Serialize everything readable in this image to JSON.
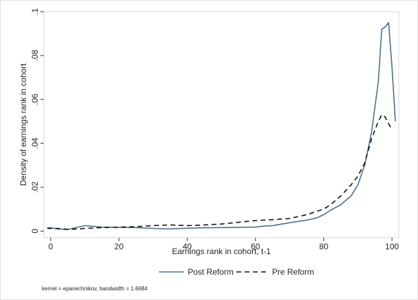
{
  "chart_data": {
    "type": "line",
    "xlabel": "Earnings rank in cohort, t-1",
    "ylabel": "Density of earnings rank in cohort",
    "xlim": [
      -2,
      102
    ],
    "ylim": [
      -0.003,
      0.1
    ],
    "x_ticks": [
      0,
      20,
      40,
      60,
      80,
      100
    ],
    "x_tick_labels": [
      "0",
      "20",
      "40",
      "60",
      "80",
      "100"
    ],
    "y_ticks": [
      0,
      0.02,
      0.04,
      0.06,
      0.08,
      0.1
    ],
    "y_tick_labels": [
      "0",
      ".02",
      ".04",
      ".06",
      ".08",
      ".1"
    ],
    "grid": false,
    "legend_position": "bottom",
    "series": [
      {
        "name": "Post Reform",
        "color": "#4a6e8f",
        "style": "solid",
        "x": [
          -1,
          0,
          2,
          5,
          8,
          10,
          12,
          15,
          20,
          25,
          30,
          35,
          40,
          45,
          50,
          55,
          60,
          62,
          65,
          70,
          75,
          78,
          80,
          82,
          85,
          88,
          90,
          92,
          94,
          96,
          97,
          98,
          99,
          100,
          101
        ],
        "y": [
          0.0015,
          0.0015,
          0.001,
          0.0007,
          0.0018,
          0.0025,
          0.0022,
          0.0018,
          0.0017,
          0.0016,
          0.0012,
          0.001,
          0.0013,
          0.0015,
          0.0016,
          0.0017,
          0.0018,
          0.0022,
          0.0025,
          0.0038,
          0.005,
          0.006,
          0.0075,
          0.0095,
          0.012,
          0.016,
          0.021,
          0.03,
          0.045,
          0.068,
          0.092,
          0.093,
          0.095,
          0.075,
          0.05
        ]
      },
      {
        "name": "Pre Reform",
        "color": "#111111",
        "style": "dashed",
        "x": [
          -1,
          0,
          2,
          5,
          8,
          10,
          15,
          20,
          25,
          30,
          35,
          40,
          45,
          50,
          55,
          60,
          65,
          70,
          75,
          80,
          82,
          85,
          88,
          90,
          92,
          94,
          96,
          97,
          98,
          99,
          100
        ],
        "y": [
          0.0012,
          0.0012,
          0.0012,
          0.0008,
          0.001,
          0.0012,
          0.0016,
          0.0018,
          0.002,
          0.0025,
          0.0028,
          0.0025,
          0.0028,
          0.0032,
          0.004,
          0.0048,
          0.0052,
          0.0057,
          0.0075,
          0.01,
          0.012,
          0.016,
          0.021,
          0.025,
          0.031,
          0.042,
          0.05,
          0.053,
          0.052,
          0.049,
          0.046
        ]
      }
    ],
    "note": "kernel = epanechnikov, bandwidth = 1.6684"
  }
}
